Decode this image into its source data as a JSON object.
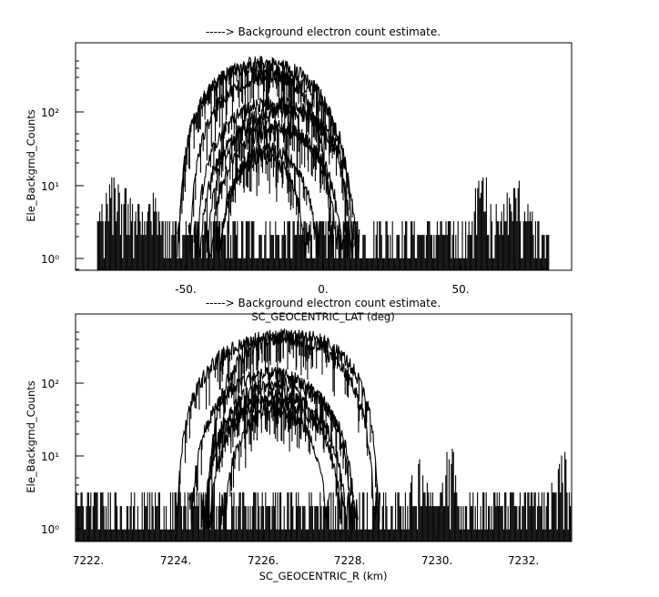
{
  "chart_data": [
    {
      "type": "line",
      "title": "-----> Background electron count estimate.",
      "xlabel": "SC_GEOCENTRIC_LAT (deg)",
      "ylabel": "Ele_Backgrnd_Counts",
      "y_scale": "log",
      "xlim": [
        -90,
        90
      ],
      "ylim": [
        0.7,
        600
      ],
      "x_ticks": [
        -50,
        0,
        50
      ],
      "x_tick_labels": [
        "-50.",
        "0.",
        "50."
      ],
      "y_ticks": [
        1,
        10,
        100
      ],
      "y_tick_labels": [
        "10⁰",
        "10¹",
        "10²"
      ],
      "grid": false,
      "data_range_x": [
        -82,
        82
      ],
      "noise_floor_counts": [
        1,
        2,
        3
      ],
      "series": [
        {
          "center": -22,
          "half_width": 31,
          "peak": 330
        },
        {
          "center": -25,
          "half_width": 28,
          "peak": 280
        },
        {
          "center": -19,
          "half_width": 30,
          "peak": 220
        },
        {
          "center": -18,
          "half_width": 29,
          "peak": 100
        },
        {
          "center": -15,
          "half_width": 28,
          "peak": 80
        },
        {
          "center": -20,
          "half_width": 26,
          "peak": 55
        },
        {
          "center": -17,
          "half_width": 25,
          "peak": 45
        },
        {
          "center": -20,
          "half_width": 19,
          "peak": 25
        },
        {
          "center": -22,
          "half_width": 17,
          "peak": 20
        }
      ],
      "bursts": [
        {
          "center": -75,
          "width": 10,
          "peak": 12
        },
        {
          "center": -64,
          "width": 8,
          "peak": 9
        },
        {
          "center": 58,
          "width": 8,
          "peak": 12
        },
        {
          "center": 70,
          "width": 9,
          "peak": 10
        }
      ]
    },
    {
      "type": "line",
      "title": "-----> Background electron count estimate.",
      "xlabel": "SC_GEOCENTRIC_R (km)",
      "ylabel": "Ele_Backgrnd_Counts",
      "y_scale": "log",
      "xlim": [
        7221.7,
        7233.1
      ],
      "ylim": [
        0.7,
        600
      ],
      "x_ticks": [
        7222,
        7224,
        7226,
        7228,
        7230,
        7232
      ],
      "x_tick_labels": [
        "7222.",
        "7224.",
        "7226.",
        "7228.",
        "7230.",
        "7232."
      ],
      "y_ticks": [
        1,
        10,
        100
      ],
      "y_tick_labels": [
        "10⁰",
        "10¹",
        "10²"
      ],
      "grid": false,
      "data_range_x": [
        7221.7,
        7233.1
      ],
      "noise_floor_counts": [
        1,
        2,
        3
      ],
      "series": [
        {
          "center": 7226.3,
          "half_width": 2.3,
          "peak": 300
        },
        {
          "center": 7226.7,
          "half_width": 2.0,
          "peak": 320
        },
        {
          "center": 7226.2,
          "half_width": 1.9,
          "peak": 100
        },
        {
          "center": 7226.4,
          "half_width": 1.8,
          "peak": 75
        },
        {
          "center": 7226.3,
          "half_width": 1.7,
          "peak": 55
        },
        {
          "center": 7226.3,
          "half_width": 1.6,
          "peak": 45
        },
        {
          "center": 7226.3,
          "half_width": 1.25,
          "peak": 35
        }
      ],
      "bursts": [
        {
          "center": 7229.6,
          "width": 0.35,
          "peak": 10
        },
        {
          "center": 7230.3,
          "width": 0.25,
          "peak": 15
        },
        {
          "center": 7232.9,
          "width": 0.4,
          "peak": 12
        }
      ]
    }
  ]
}
